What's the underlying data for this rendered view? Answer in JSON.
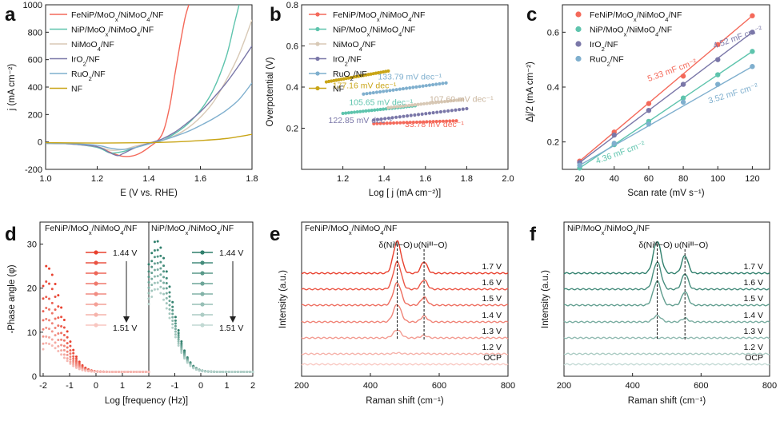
{
  "figure": {
    "panels": [
      {
        "id": "a",
        "label": "a"
      },
      {
        "id": "b",
        "label": "b"
      },
      {
        "id": "c",
        "label": "c"
      },
      {
        "id": "d",
        "label": "d"
      },
      {
        "id": "e",
        "label": "e"
      },
      {
        "id": "f",
        "label": "f"
      }
    ]
  },
  "colors": {
    "FeNiP": "#f4695a",
    "NiP": "#5ec4ad",
    "NiMoO4": "#d8c9b6",
    "IrO2": "#7a77a8",
    "RuO2": "#7fafce",
    "NF": "#c9a517",
    "d_left": "#e8402e",
    "d_right": "#2f7f6c"
  },
  "chart_data": [
    {
      "panel": "a",
      "type": "line",
      "xlabel": "E (V vs. RHE)",
      "ylabel": "j (mA cm⁻²)",
      "xlim": [
        1.0,
        1.8
      ],
      "ylim": [
        -200,
        1000
      ],
      "xticks": [
        "1.0",
        "1.2",
        "1.4",
        "1.6",
        "1.8"
      ],
      "yticks": [
        "-200",
        "0",
        "200",
        "400",
        "600",
        "800",
        "1000"
      ],
      "legend_position": "top-left",
      "series": [
        {
          "name": "FeNiP/MoOx/NiMoO4/NF",
          "key": "FeNiP",
          "x": [
            1.0,
            1.1,
            1.2,
            1.25,
            1.3,
            1.35,
            1.4,
            1.45,
            1.48,
            1.5,
            1.52,
            1.54,
            1.555
          ],
          "y": [
            -10,
            -15,
            -35,
            -75,
            -105,
            -95,
            -40,
            50,
            250,
            480,
            700,
            900,
            1000
          ]
        },
        {
          "name": "NiP/MoOx/NiMoO4/NF",
          "key": "NiP",
          "x": [
            1.0,
            1.1,
            1.2,
            1.25,
            1.3,
            1.35,
            1.4,
            1.45,
            1.5,
            1.55,
            1.6,
            1.65,
            1.7,
            1.73,
            1.75
          ],
          "y": [
            -10,
            -15,
            -40,
            -80,
            -70,
            -40,
            -10,
            10,
            60,
            130,
            230,
            380,
            620,
            850,
            1000
          ]
        },
        {
          "name": "NiMoO4/NF",
          "key": "NiMoO4",
          "x": [
            1.0,
            1.1,
            1.2,
            1.25,
            1.3,
            1.35,
            1.4,
            1.45,
            1.5,
            1.55,
            1.6,
            1.65,
            1.7,
            1.75,
            1.8
          ],
          "y": [
            -10,
            -15,
            -35,
            -60,
            -55,
            -30,
            -10,
            10,
            45,
            100,
            180,
            290,
            450,
            640,
            890
          ]
        },
        {
          "name": "IrO2/NF",
          "key": "IrO2",
          "x": [
            1.0,
            1.1,
            1.2,
            1.25,
            1.28,
            1.3,
            1.35,
            1.4,
            1.45,
            1.5,
            1.55,
            1.6,
            1.65,
            1.7,
            1.75,
            1.8
          ],
          "y": [
            -10,
            -15,
            -35,
            -80,
            -100,
            -85,
            -40,
            -10,
            20,
            70,
            140,
            220,
            320,
            430,
            560,
            700
          ]
        },
        {
          "name": "RuO2/NF",
          "key": "RuO2",
          "x": [
            1.0,
            1.1,
            1.2,
            1.25,
            1.3,
            1.35,
            1.4,
            1.45,
            1.5,
            1.55,
            1.6,
            1.65,
            1.7,
            1.75,
            1.8
          ],
          "y": [
            -10,
            -12,
            -25,
            -45,
            -55,
            -40,
            -15,
            10,
            40,
            75,
            120,
            170,
            230,
            310,
            430
          ]
        },
        {
          "name": "NF",
          "key": "NF",
          "x": [
            1.0,
            1.2,
            1.4,
            1.5,
            1.6,
            1.7,
            1.8
          ],
          "y": [
            -5,
            -8,
            -5,
            0,
            10,
            25,
            55
          ]
        }
      ]
    },
    {
      "panel": "b",
      "type": "line",
      "xlabel": "Log [ j (mA cm⁻²)]",
      "ylabel": "Overpotential (V)",
      "xlim": [
        1.0,
        2.0
      ],
      "ylim": [
        0.0,
        0.8
      ],
      "xticks": [
        "1.2",
        "1.4",
        "1.6",
        "1.8",
        "2.0"
      ],
      "yticks": [
        "0.2",
        "0.4",
        "0.6",
        "0.8"
      ],
      "legend_position": "top-left",
      "series": [
        {
          "name": "FeNiP/MoOx/NiMoO4/NF",
          "key": "FeNiP",
          "x": [
            1.35,
            1.75
          ],
          "y": [
            0.222,
            0.236
          ],
          "tafel": "33.78 mV dec⁻¹"
        },
        {
          "name": "NiP/MoOx/NiMoO4/NF",
          "key": "NiP",
          "x": [
            1.2,
            1.55
          ],
          "y": [
            0.272,
            0.309
          ],
          "tafel": "105.65 mV dec⁻¹"
        },
        {
          "name": "NiMoO4/NF",
          "key": "NiMoO4",
          "x": [
            1.42,
            1.78
          ],
          "y": [
            0.3,
            0.339
          ],
          "tafel": "107.60 mV dec⁻¹"
        },
        {
          "name": "IrO2/NF",
          "key": "IrO2",
          "x": [
            1.35,
            1.8
          ],
          "y": [
            0.24,
            0.295
          ],
          "tafel": "122.85 mV dec⁻¹"
        },
        {
          "name": "RuO2/NF",
          "key": "RuO2",
          "x": [
            1.3,
            1.7
          ],
          "y": [
            0.366,
            0.42
          ],
          "tafel": "133.79 mV dec⁻¹"
        },
        {
          "name": "NF",
          "key": "NF",
          "x": [
            1.12,
            1.42
          ],
          "y": [
            0.425,
            0.478
          ],
          "tafel": "177.16 mV dec⁻¹"
        }
      ]
    },
    {
      "panel": "c",
      "type": "scatter",
      "xlabel": "Scan rate (mV s⁻¹)",
      "ylabel": "Δj/2 (mA cm⁻²)",
      "xlim": [
        10,
        130
      ],
      "ylim": [
        0.1,
        0.7
      ],
      "xticks": [
        "20",
        "40",
        "60",
        "80",
        "100",
        "120"
      ],
      "yticks": [
        "0.2",
        "0.4",
        "0.6"
      ],
      "legend_position": "top-left",
      "x": [
        20,
        40,
        60,
        80,
        100,
        120
      ],
      "series": [
        {
          "name": "FeNiP/MoOx/NiMoO4/NF",
          "key": "FeNiP",
          "y": [
            0.13,
            0.236,
            0.34,
            0.44,
            0.555,
            0.66
          ],
          "cdl": "5.33 mF cm⁻²"
        },
        {
          "name": "NiP/MoOx/NiMoO4/NF",
          "key": "NiP",
          "y": [
            0.105,
            0.19,
            0.275,
            0.36,
            0.445,
            0.53
          ],
          "cdl": "4.36 mF cm⁻²"
        },
        {
          "name": "IrO2/NF",
          "key": "IrO2",
          "y": [
            0.125,
            0.225,
            0.315,
            0.41,
            0.5,
            0.6
          ],
          "cdl": "4.52 mF cm⁻²"
        },
        {
          "name": "RuO2/NF",
          "key": "RuO2",
          "y": [
            0.115,
            0.195,
            0.265,
            0.345,
            0.41,
            0.475
          ],
          "cdl": "3.52 mF cm⁻²"
        }
      ]
    },
    {
      "panel": "d",
      "type": "scatter",
      "xlabel": "Log [frequency (Hz)]",
      "ylabel": "-Phase angle (φ)",
      "ylim": [
        0,
        35
      ],
      "yticks": [
        "0",
        "10",
        "20",
        "30"
      ],
      "left": {
        "title": "FeNiP/MoOx/NiMoO4/NF",
        "xlim": [
          -2,
          2
        ],
        "xticks": [
          "-2",
          "-1",
          "0",
          "1",
          "2"
        ],
        "peaks": [
          25,
          21.5,
          18,
          15.5,
          13,
          11,
          9,
          7.5
        ],
        "color_key": "d_left"
      },
      "right": {
        "title": "NiP/MoOx/NiMoO4/NF",
        "xlim": [
          -2,
          2
        ],
        "xticks": [
          "-1",
          "0",
          "1",
          "2"
        ],
        "peaks": [
          31,
          29,
          27.5,
          26,
          24.5,
          23,
          21.5,
          20
        ],
        "color_key": "d_right"
      },
      "voltage_start": "1.44 V",
      "voltage_end": "1.51 V"
    },
    {
      "panel": "e",
      "type": "line",
      "title": "FeNiP/MoOx/NiMoO4/NF",
      "xlabel": "Raman shift (cm⁻¹)",
      "ylabel": "Intensity (a.u.)",
      "xlim": [
        200,
        800
      ],
      "xticks": [
        "200",
        "400",
        "600",
        "800"
      ],
      "traces": [
        "1.7 V",
        "1.6 V",
        "1.5 V",
        "1.4 V",
        "1.3 V",
        "1.2 V",
        "OCP"
      ],
      "peak_heights_1": [
        1.0,
        0.85,
        0.7,
        0.55,
        0.25,
        0.03,
        0.0
      ],
      "peak_heights_2": [
        0.55,
        0.45,
        0.38,
        0.28,
        0.12,
        0.02,
        0.0
      ],
      "peak1": {
        "position": 478,
        "label": "δ(Niᴵᴵᴵ−O)"
      },
      "peak2": {
        "position": 556,
        "label": "υ(Niᴵᴵᴵ−O)"
      }
    },
    {
      "panel": "f",
      "type": "line",
      "title": "NiP/MoOx/NiMoO4/NF",
      "xlabel": "Raman shift (cm⁻¹)",
      "ylabel": "Intensity (a.u.)",
      "xlim": [
        200,
        800
      ],
      "xticks": [
        "200",
        "400",
        "600",
        "800"
      ],
      "traces": [
        "1.7 V",
        "1.6 V",
        "1.5 V",
        "1.4 V",
        "1.3 V",
        "1.2 V",
        "OCP"
      ],
      "peak_heights_1": [
        1.0,
        0.85,
        0.75,
        0.2,
        0.0,
        0.0,
        0.0
      ],
      "peak_heights_2": [
        0.85,
        0.75,
        0.65,
        0.18,
        0.0,
        0.0,
        0.0
      ],
      "peak1": {
        "position": 472,
        "label": "δ(Niᴵᴵᴵ−O)"
      },
      "peak2": {
        "position": 553,
        "label": "υ(Niᴵᴵᴵ−O)"
      }
    }
  ]
}
